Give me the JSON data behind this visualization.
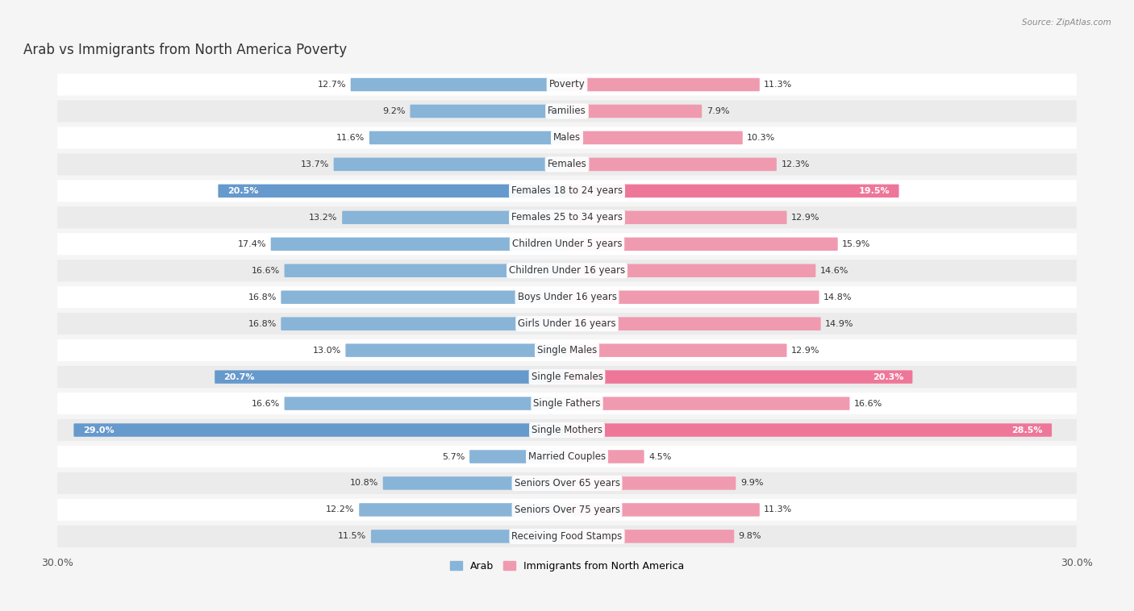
{
  "title": "Arab vs Immigrants from North America Poverty",
  "source": "Source: ZipAtlas.com",
  "categories": [
    "Poverty",
    "Families",
    "Males",
    "Females",
    "Females 18 to 24 years",
    "Females 25 to 34 years",
    "Children Under 5 years",
    "Children Under 16 years",
    "Boys Under 16 years",
    "Girls Under 16 years",
    "Single Males",
    "Single Females",
    "Single Fathers",
    "Single Mothers",
    "Married Couples",
    "Seniors Over 65 years",
    "Seniors Over 75 years",
    "Receiving Food Stamps"
  ],
  "arab_values": [
    12.7,
    9.2,
    11.6,
    13.7,
    20.5,
    13.2,
    17.4,
    16.6,
    16.8,
    16.8,
    13.0,
    20.7,
    16.6,
    29.0,
    5.7,
    10.8,
    12.2,
    11.5
  ],
  "immigrant_values": [
    11.3,
    7.9,
    10.3,
    12.3,
    19.5,
    12.9,
    15.9,
    14.6,
    14.8,
    14.9,
    12.9,
    20.3,
    16.6,
    28.5,
    4.5,
    9.9,
    11.3,
    9.8
  ],
  "arab_color": "#88b4d8",
  "immigrant_color": "#f09ab0",
  "arab_highlight_indices": [
    4,
    11,
    13
  ],
  "immigrant_highlight_indices": [
    4,
    11,
    13
  ],
  "arab_highlight_color": "#6699cc",
  "immigrant_highlight_color": "#ee7799",
  "label_arab": "Arab",
  "label_immigrant": "Immigrants from North America",
  "xlim": 30.0,
  "background_color": "#f5f5f5",
  "row_color_light": "#ffffff",
  "row_color_dark": "#ebebeb",
  "label_fontsize": 8.5,
  "value_fontsize": 8,
  "title_fontsize": 12,
  "axis_tick_fontsize": 9
}
